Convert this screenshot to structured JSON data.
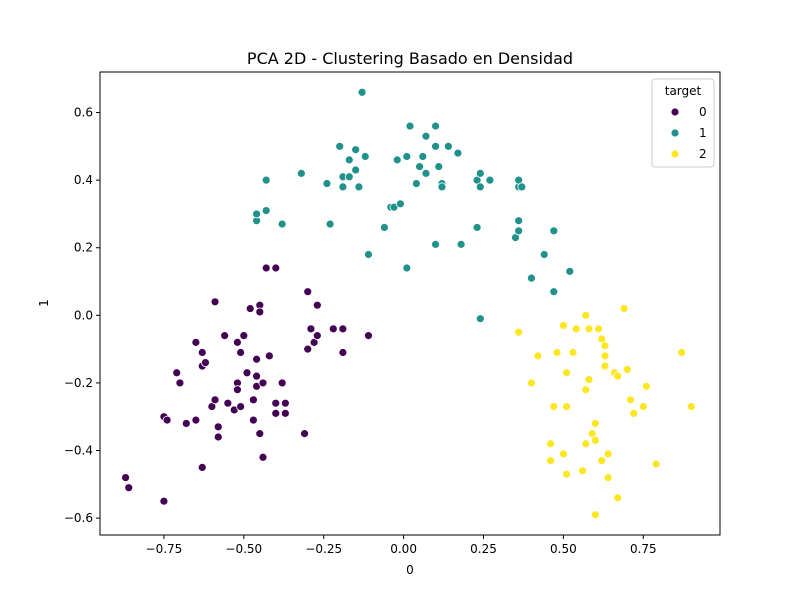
{
  "chart_data": {
    "type": "scatter",
    "title": "PCA 2D - Clustering Basado en Densidad",
    "xlabel": "0",
    "ylabel": "1",
    "xlim": [
      -0.95,
      0.99
    ],
    "ylim": [
      -0.65,
      0.72
    ],
    "xticks": [
      -0.75,
      -0.5,
      -0.25,
      0.0,
      0.25,
      0.5,
      0.75
    ],
    "xtick_labels": [
      "−0.75",
      "−0.50",
      "−0.25",
      "0.00",
      "0.25",
      "0.50",
      "0.75"
    ],
    "yticks": [
      -0.6,
      -0.4,
      -0.2,
      0.0,
      0.2,
      0.4,
      0.6
    ],
    "ytick_labels": [
      "−0.6",
      "−0.4",
      "−0.2",
      "0.0",
      "0.2",
      "0.4",
      "0.6"
    ],
    "grid": false,
    "legend": {
      "title": "target",
      "placement": "top-right"
    },
    "series": [
      {
        "name": "0",
        "color": "#440154",
        "points": [
          [
            -0.87,
            -0.48
          ],
          [
            -0.86,
            -0.51
          ],
          [
            -0.75,
            -0.55
          ],
          [
            -0.75,
            -0.3
          ],
          [
            -0.74,
            -0.31
          ],
          [
            -0.71,
            -0.17
          ],
          [
            -0.7,
            -0.2
          ],
          [
            -0.68,
            -0.32
          ],
          [
            -0.65,
            -0.31
          ],
          [
            -0.65,
            -0.08
          ],
          [
            -0.63,
            -0.11
          ],
          [
            -0.63,
            -0.15
          ],
          [
            -0.62,
            -0.14
          ],
          [
            -0.63,
            -0.45
          ],
          [
            -0.59,
            0.04
          ],
          [
            -0.6,
            -0.27
          ],
          [
            -0.59,
            -0.25
          ],
          [
            -0.58,
            -0.33
          ],
          [
            -0.58,
            -0.36
          ],
          [
            -0.56,
            -0.06
          ],
          [
            -0.55,
            -0.26
          ],
          [
            -0.53,
            -0.28
          ],
          [
            -0.52,
            -0.2
          ],
          [
            -0.52,
            -0.22
          ],
          [
            -0.51,
            -0.27
          ],
          [
            -0.52,
            -0.08
          ],
          [
            -0.51,
            -0.11
          ],
          [
            -0.5,
            -0.06
          ],
          [
            -0.49,
            -0.17
          ],
          [
            -0.48,
            0.02
          ],
          [
            -0.47,
            -0.25
          ],
          [
            -0.47,
            -0.31
          ],
          [
            -0.46,
            -0.18
          ],
          [
            -0.46,
            -0.21
          ],
          [
            -0.46,
            -0.13
          ],
          [
            -0.45,
            0.03
          ],
          [
            -0.45,
            0.01
          ],
          [
            -0.45,
            -0.35
          ],
          [
            -0.44,
            -0.2
          ],
          [
            -0.44,
            -0.42
          ],
          [
            -0.43,
            0.14
          ],
          [
            -0.42,
            -0.12
          ],
          [
            -0.4,
            0.14
          ],
          [
            -0.4,
            -0.26
          ],
          [
            -0.4,
            -0.29
          ],
          [
            -0.38,
            -0.2
          ],
          [
            -0.37,
            -0.26
          ],
          [
            -0.37,
            -0.29
          ],
          [
            -0.31,
            -0.35
          ],
          [
            -0.3,
            -0.1
          ],
          [
            -0.3,
            0.07
          ],
          [
            -0.29,
            -0.04
          ],
          [
            -0.28,
            -0.08
          ],
          [
            -0.27,
            -0.06
          ],
          [
            -0.27,
            0.03
          ],
          [
            -0.22,
            -0.04
          ],
          [
            -0.19,
            -0.04
          ],
          [
            -0.19,
            -0.11
          ],
          [
            -0.11,
            -0.06
          ]
        ]
      },
      {
        "name": "1",
        "color": "#21918c",
        "points": [
          [
            -0.46,
            0.28
          ],
          [
            -0.46,
            0.3
          ],
          [
            -0.43,
            0.31
          ],
          [
            -0.43,
            0.4
          ],
          [
            -0.38,
            0.27
          ],
          [
            -0.32,
            0.42
          ],
          [
            -0.24,
            0.39
          ],
          [
            -0.23,
            0.27
          ],
          [
            -0.2,
            0.5
          ],
          [
            -0.19,
            0.38
          ],
          [
            -0.19,
            0.41
          ],
          [
            -0.17,
            0.46
          ],
          [
            -0.17,
            0.41
          ],
          [
            -0.15,
            0.49
          ],
          [
            -0.15,
            0.43
          ],
          [
            -0.14,
            0.38
          ],
          [
            -0.13,
            0.66
          ],
          [
            -0.12,
            0.47
          ],
          [
            -0.11,
            0.18
          ],
          [
            -0.06,
            0.26
          ],
          [
            -0.04,
            0.32
          ],
          [
            -0.03,
            0.32
          ],
          [
            -0.02,
            0.46
          ],
          [
            -0.01,
            0.33
          ],
          [
            0.01,
            0.14
          ],
          [
            0.01,
            0.47
          ],
          [
            0.02,
            0.56
          ],
          [
            0.04,
            0.39
          ],
          [
            0.05,
            0.44
          ],
          [
            0.06,
            0.47
          ],
          [
            0.07,
            0.53
          ],
          [
            0.07,
            0.42
          ],
          [
            0.1,
            0.56
          ],
          [
            0.1,
            0.21
          ],
          [
            0.1,
            0.5
          ],
          [
            0.11,
            0.44
          ],
          [
            0.12,
            0.39
          ],
          [
            0.12,
            0.38
          ],
          [
            0.14,
            0.5
          ],
          [
            0.17,
            0.48
          ],
          [
            0.18,
            0.21
          ],
          [
            0.23,
            0.4
          ],
          [
            0.23,
            0.26
          ],
          [
            0.24,
            0.38
          ],
          [
            0.24,
            0.42
          ],
          [
            0.24,
            -0.01
          ],
          [
            0.27,
            0.4
          ],
          [
            0.35,
            0.23
          ],
          [
            0.36,
            0.25
          ],
          [
            0.36,
            0.38
          ],
          [
            0.36,
            0.4
          ],
          [
            0.36,
            0.28
          ],
          [
            0.37,
            0.38
          ],
          [
            0.4,
            0.11
          ],
          [
            0.44,
            0.18
          ],
          [
            0.47,
            0.25
          ],
          [
            0.47,
            0.07
          ],
          [
            0.52,
            0.13
          ]
        ]
      },
      {
        "name": "2",
        "color": "#fde725",
        "points": [
          [
            0.36,
            -0.05
          ],
          [
            0.4,
            -0.2
          ],
          [
            0.42,
            -0.12
          ],
          [
            0.46,
            -0.38
          ],
          [
            0.46,
            -0.43
          ],
          [
            0.47,
            -0.27
          ],
          [
            0.48,
            -0.11
          ],
          [
            0.5,
            -0.03
          ],
          [
            0.5,
            -0.41
          ],
          [
            0.51,
            -0.47
          ],
          [
            0.51,
            -0.17
          ],
          [
            0.51,
            -0.27
          ],
          [
            0.53,
            -0.11
          ],
          [
            0.54,
            -0.04
          ],
          [
            0.56,
            -0.46
          ],
          [
            0.57,
            -0.38
          ],
          [
            0.57,
            -0.22
          ],
          [
            0.57,
            0.0
          ],
          [
            0.58,
            -0.04
          ],
          [
            0.58,
            -0.19
          ],
          [
            0.59,
            -0.35
          ],
          [
            0.6,
            -0.59
          ],
          [
            0.6,
            -0.32
          ],
          [
            0.6,
            -0.37
          ],
          [
            0.61,
            -0.04
          ],
          [
            0.62,
            -0.43
          ],
          [
            0.62,
            -0.07
          ],
          [
            0.63,
            -0.15
          ],
          [
            0.63,
            -0.09
          ],
          [
            0.63,
            -0.12
          ],
          [
            0.64,
            -0.48
          ],
          [
            0.64,
            -0.41
          ],
          [
            0.66,
            -0.17
          ],
          [
            0.67,
            -0.54
          ],
          [
            0.67,
            -0.18
          ],
          [
            0.69,
            0.02
          ],
          [
            0.7,
            -0.16
          ],
          [
            0.71,
            -0.25
          ],
          [
            0.72,
            -0.29
          ],
          [
            0.75,
            -0.27
          ],
          [
            0.76,
            -0.21
          ],
          [
            0.79,
            -0.44
          ],
          [
            0.87,
            -0.11
          ],
          [
            0.9,
            -0.27
          ]
        ]
      }
    ]
  }
}
